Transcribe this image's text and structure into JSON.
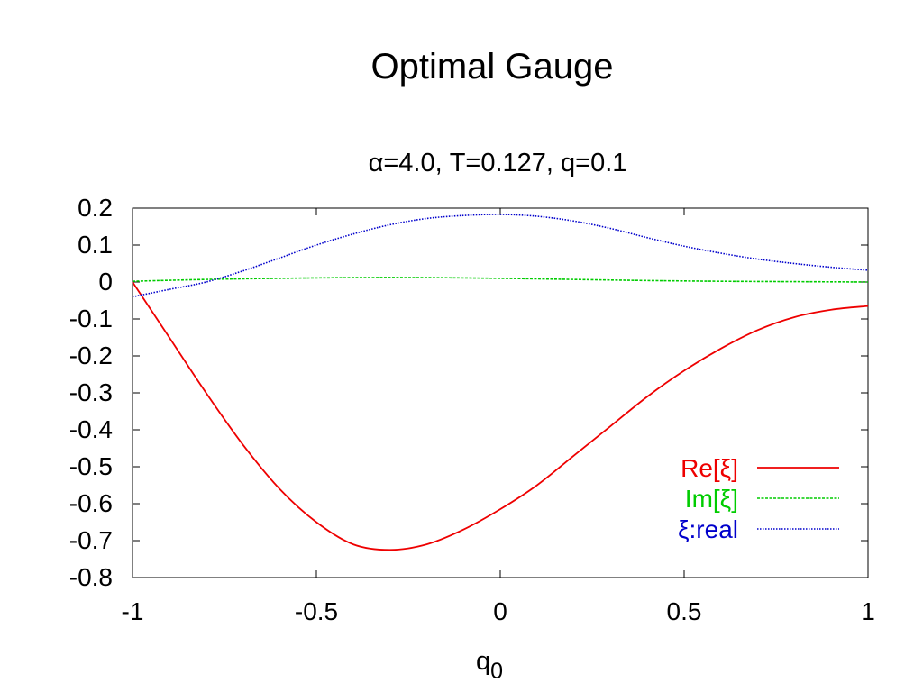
{
  "page": {
    "title": "Optimal Gauge"
  },
  "chart_data": {
    "type": "line",
    "title": "α=4.0, T=0.127, q=0.1",
    "xlabel": "q",
    "xlabel_subscript": "0",
    "ylabel": "",
    "xlim": [
      -1,
      1
    ],
    "ylim": [
      -0.8,
      0.2
    ],
    "xticks": [
      "-1",
      "-0.5",
      "0",
      "0.5",
      "1"
    ],
    "yticks": [
      "0.2",
      "0.1",
      "0",
      "-0.1",
      "-0.2",
      "-0.3",
      "-0.4",
      "-0.5",
      "-0.6",
      "-0.7",
      "-0.8"
    ],
    "xtick_values": [
      -1,
      -0.5,
      0,
      0.5,
      1
    ],
    "ytick_values": [
      0.2,
      0.1,
      0,
      -0.1,
      -0.2,
      -0.3,
      -0.4,
      -0.5,
      -0.6,
      -0.7,
      -0.8
    ],
    "grid": false,
    "legend_position": "bottom-right",
    "series": [
      {
        "name": "Re[ξ]",
        "color": "#ee0000",
        "style": "solid",
        "x": [
          -1,
          -0.9,
          -0.8,
          -0.7,
          -0.6,
          -0.5,
          -0.4,
          -0.3,
          -0.2,
          -0.1,
          0,
          0.1,
          0.2,
          0.3,
          0.4,
          0.5,
          0.6,
          0.7,
          0.8,
          0.9,
          1
        ],
        "y": [
          0,
          -0.15,
          -0.3,
          -0.44,
          -0.56,
          -0.65,
          -0.71,
          -0.725,
          -0.71,
          -0.67,
          -0.615,
          -0.55,
          -0.47,
          -0.39,
          -0.31,
          -0.24,
          -0.18,
          -0.13,
          -0.095,
          -0.075,
          -0.065
        ]
      },
      {
        "name": "Im[ξ]",
        "color": "#00cc00",
        "style": "dashed",
        "x": [
          -1,
          -0.8,
          -0.6,
          -0.4,
          -0.2,
          0,
          0.2,
          0.4,
          0.6,
          0.8,
          1
        ],
        "y": [
          0.002,
          0.007,
          0.01,
          0.012,
          0.012,
          0.01,
          0.007,
          0.004,
          0.002,
          0.001,
          0
        ]
      },
      {
        "name": "ξ:real",
        "color": "#0000cc",
        "style": "dotted",
        "x": [
          -1,
          -0.9,
          -0.8,
          -0.7,
          -0.6,
          -0.5,
          -0.4,
          -0.3,
          -0.2,
          -0.1,
          0,
          0.1,
          0.2,
          0.3,
          0.4,
          0.5,
          0.6,
          0.7,
          0.8,
          0.9,
          1
        ],
        "y": [
          -0.04,
          -0.02,
          0.0,
          0.03,
          0.065,
          0.1,
          0.13,
          0.155,
          0.172,
          0.18,
          0.183,
          0.178,
          0.165,
          0.145,
          0.12,
          0.097,
          0.078,
          0.062,
          0.05,
          0.04,
          0.032
        ]
      }
    ]
  }
}
